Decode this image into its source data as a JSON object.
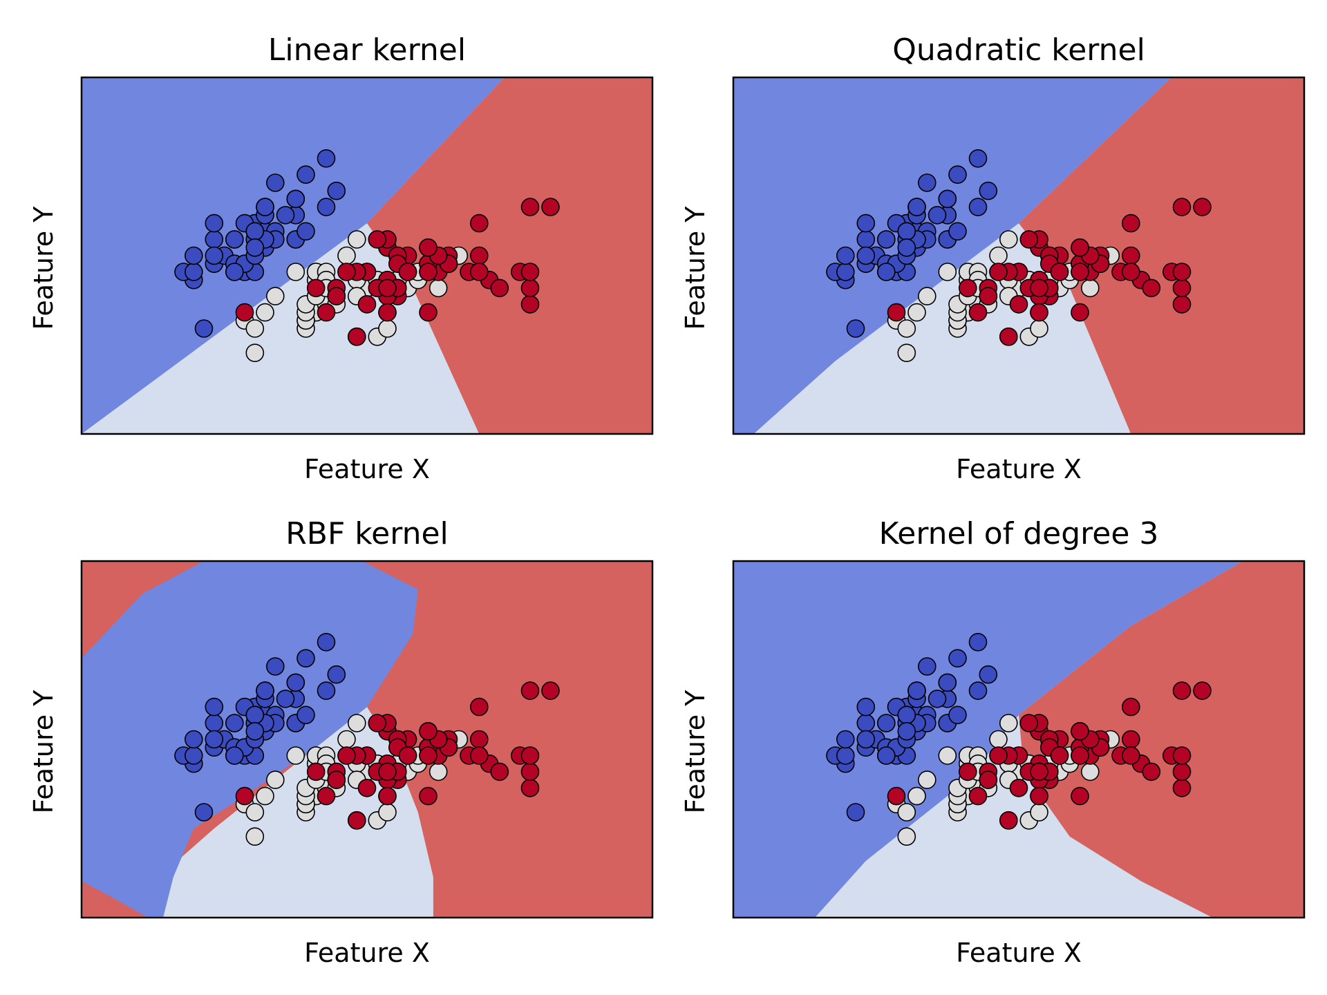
{
  "colors": {
    "class_0_region": "#7186DE",
    "class_1_region": "#D5DEEF",
    "class_2_region": "#D5625E",
    "class_0_point": "#3B4CC0",
    "class_1_point": "#DDDDDD",
    "class_2_point": "#B40426",
    "marker_edge": "#000000"
  },
  "chart_data": [
    {
      "type": "scatter",
      "title": "Linear kernel",
      "xlabel": "Feature X",
      "ylabel": "Feature Y",
      "xlim": [
        3.3,
        8.9
      ],
      "ylim": [
        1.0,
        5.4
      ],
      "ticks_visible": false,
      "grid": false,
      "decision_regions": {
        "type": "lines",
        "boundary_0": [
          [
            3.3,
            1.0
          ],
          [
            6.1,
            3.6
          ],
          [
            7.45,
            5.4
          ]
        ],
        "boundary_2": [
          [
            6.1,
            3.6
          ],
          [
            6.55,
            2.8
          ],
          [
            7.2,
            1.0
          ]
        ]
      }
    },
    {
      "type": "scatter",
      "title": "Quadratic kernel",
      "xlabel": "Feature X",
      "ylabel": "Feature Y",
      "xlim": [
        3.3,
        8.9
      ],
      "ylim": [
        1.0,
        5.4
      ],
      "ticks_visible": false,
      "grid": false,
      "decision_regions": {
        "type": "lines",
        "boundary_0": [
          [
            3.5,
            1.0
          ],
          [
            4.3,
            1.9
          ],
          [
            6.1,
            3.6
          ],
          [
            7.6,
            5.4
          ]
        ],
        "boundary_2": [
          [
            6.1,
            3.6
          ],
          [
            6.6,
            2.8
          ],
          [
            7.2,
            1.0
          ]
        ]
      }
    },
    {
      "type": "scatter",
      "title": "RBF kernel",
      "xlabel": "Feature X",
      "ylabel": "Feature Y",
      "xlim": [
        3.3,
        8.9
      ],
      "ylim": [
        1.0,
        5.4
      ],
      "ticks_visible": false,
      "grid": false,
      "decision_regions": {
        "type": "rbf",
        "boundary_0": [
          [
            3.3,
            4.2
          ],
          [
            3.9,
            5.0
          ],
          [
            4.5,
            5.4
          ],
          [
            6.05,
            5.4
          ],
          [
            6.6,
            5.05
          ],
          [
            6.55,
            4.5
          ],
          [
            6.1,
            3.6
          ],
          [
            5.6,
            3.1
          ],
          [
            4.9,
            2.5
          ],
          [
            4.4,
            2.1
          ],
          [
            4.2,
            1.5
          ],
          [
            4.1,
            1.0
          ],
          [
            3.95,
            1.0
          ],
          [
            3.6,
            1.25
          ],
          [
            3.3,
            1.45
          ]
        ],
        "boundary_2": [
          [
            6.05,
            3.6
          ],
          [
            6.35,
            3.1
          ],
          [
            6.6,
            2.3
          ],
          [
            6.75,
            1.5
          ],
          [
            6.75,
            1.0
          ]
        ]
      }
    },
    {
      "type": "scatter",
      "title": "Kernel of degree 3",
      "xlabel": "Feature X",
      "ylabel": "Feature Y",
      "xlim": [
        3.3,
        8.9
      ],
      "ylim": [
        1.0,
        5.4
      ],
      "ticks_visible": false,
      "grid": false,
      "decision_regions": {
        "type": "lines",
        "boundary_0": [
          [
            4.1,
            1.0
          ],
          [
            4.6,
            1.7
          ],
          [
            5.6,
            2.7
          ],
          [
            6.1,
            3.5
          ],
          [
            7.2,
            4.6
          ],
          [
            8.3,
            5.4
          ]
        ],
        "boundary_2": [
          [
            6.1,
            3.5
          ],
          [
            6.15,
            2.8
          ],
          [
            6.6,
            2.0
          ],
          [
            7.3,
            1.45
          ],
          [
            8.0,
            1.0
          ]
        ]
      }
    }
  ],
  "points": {
    "class_0": [
      [
        5.1,
        3.5
      ],
      [
        4.9,
        3.0
      ],
      [
        4.7,
        3.2
      ],
      [
        4.6,
        3.1
      ],
      [
        5.0,
        3.6
      ],
      [
        5.4,
        3.9
      ],
      [
        4.6,
        3.4
      ],
      [
        5.0,
        3.4
      ],
      [
        4.4,
        2.9
      ],
      [
        4.9,
        3.1
      ],
      [
        5.4,
        3.7
      ],
      [
        4.8,
        3.4
      ],
      [
        4.8,
        3.0
      ],
      [
        4.3,
        3.0
      ],
      [
        5.8,
        4.0
      ],
      [
        5.7,
        4.4
      ],
      [
        5.4,
        3.9
      ],
      [
        5.1,
        3.5
      ],
      [
        5.7,
        3.8
      ],
      [
        5.1,
        3.8
      ],
      [
        5.4,
        3.4
      ],
      [
        5.1,
        3.7
      ],
      [
        4.6,
        3.6
      ],
      [
        5.1,
        3.3
      ],
      [
        4.8,
        3.4
      ],
      [
        5.0,
        3.0
      ],
      [
        5.0,
        3.4
      ],
      [
        5.2,
        3.5
      ],
      [
        5.2,
        3.4
      ],
      [
        4.7,
        3.2
      ],
      [
        4.8,
        3.1
      ],
      [
        5.4,
        3.4
      ],
      [
        5.2,
        4.1
      ],
      [
        5.5,
        4.2
      ],
      [
        4.9,
        3.1
      ],
      [
        5.0,
        3.2
      ],
      [
        5.5,
        3.5
      ],
      [
        4.9,
        3.6
      ],
      [
        4.4,
        3.0
      ],
      [
        5.1,
        3.4
      ],
      [
        5.0,
        3.5
      ],
      [
        4.5,
        2.3
      ],
      [
        4.4,
        3.2
      ],
      [
        5.0,
        3.5
      ],
      [
        5.1,
        3.8
      ],
      [
        4.8,
        3.0
      ],
      [
        5.1,
        3.8
      ],
      [
        4.6,
        3.2
      ],
      [
        5.3,
        3.7
      ],
      [
        5.0,
        3.3
      ]
    ],
    "class_1": [
      [
        7.0,
        3.2
      ],
      [
        6.4,
        3.2
      ],
      [
        6.9,
        3.1
      ],
      [
        5.5,
        2.3
      ],
      [
        6.5,
        2.8
      ],
      [
        5.7,
        2.8
      ],
      [
        6.3,
        3.3
      ],
      [
        4.9,
        2.4
      ],
      [
        6.6,
        2.9
      ],
      [
        5.2,
        2.7
      ],
      [
        5.0,
        2.0
      ],
      [
        5.9,
        3.0
      ],
      [
        6.0,
        2.2
      ],
      [
        6.1,
        2.9
      ],
      [
        5.6,
        2.9
      ],
      [
        6.7,
        3.1
      ],
      [
        5.6,
        3.0
      ],
      [
        5.8,
        2.7
      ],
      [
        6.2,
        2.2
      ],
      [
        5.6,
        2.5
      ],
      [
        5.9,
        3.2
      ],
      [
        6.1,
        2.8
      ],
      [
        6.3,
        2.5
      ],
      [
        6.1,
        2.8
      ],
      [
        6.4,
        2.9
      ],
      [
        6.6,
        3.0
      ],
      [
        6.8,
        2.8
      ],
      [
        6.7,
        3.0
      ],
      [
        6.0,
        2.9
      ],
      [
        5.7,
        2.6
      ],
      [
        5.5,
        2.4
      ],
      [
        5.5,
        2.4
      ],
      [
        5.8,
        2.7
      ],
      [
        6.0,
        2.7
      ],
      [
        5.4,
        3.0
      ],
      [
        6.0,
        3.4
      ],
      [
        6.7,
        3.1
      ],
      [
        6.3,
        2.3
      ],
      [
        5.6,
        3.0
      ],
      [
        5.5,
        2.5
      ],
      [
        5.5,
        2.6
      ],
      [
        6.1,
        3.0
      ],
      [
        5.8,
        2.6
      ],
      [
        5.0,
        2.3
      ],
      [
        5.6,
        2.7
      ],
      [
        5.7,
        3.0
      ],
      [
        5.7,
        2.9
      ],
      [
        6.2,
        2.9
      ],
      [
        5.1,
        2.5
      ],
      [
        5.7,
        2.8
      ]
    ],
    "class_2": [
      [
        6.3,
        3.3
      ],
      [
        5.8,
        2.7
      ],
      [
        7.1,
        3.0
      ],
      [
        6.3,
        2.9
      ],
      [
        6.5,
        3.0
      ],
      [
        7.6,
        3.0
      ],
      [
        4.9,
        2.5
      ],
      [
        7.3,
        2.9
      ],
      [
        6.7,
        2.5
      ],
      [
        7.2,
        3.6
      ],
      [
        6.5,
        3.2
      ],
      [
        6.4,
        2.7
      ],
      [
        6.8,
        3.0
      ],
      [
        5.7,
        2.5
      ],
      [
        5.8,
        2.8
      ],
      [
        6.4,
        3.2
      ],
      [
        6.5,
        3.0
      ],
      [
        7.7,
        3.8
      ],
      [
        7.7,
        2.6
      ],
      [
        6.0,
        2.2
      ],
      [
        6.9,
        3.2
      ],
      [
        5.6,
        2.8
      ],
      [
        7.7,
        2.8
      ],
      [
        6.3,
        2.7
      ],
      [
        6.7,
        3.3
      ],
      [
        7.2,
        3.2
      ],
      [
        6.2,
        2.8
      ],
      [
        6.1,
        3.0
      ],
      [
        6.4,
        2.8
      ],
      [
        7.2,
        3.0
      ],
      [
        7.4,
        2.8
      ],
      [
        7.9,
        3.8
      ],
      [
        6.4,
        2.8
      ],
      [
        6.3,
        2.8
      ],
      [
        6.1,
        2.6
      ],
      [
        7.7,
        3.0
      ],
      [
        6.3,
        3.4
      ],
      [
        6.4,
        3.1
      ],
      [
        6.0,
        3.0
      ],
      [
        6.9,
        3.1
      ],
      [
        6.7,
        3.1
      ],
      [
        6.9,
        3.1
      ],
      [
        5.8,
        2.7
      ],
      [
        6.8,
        3.2
      ],
      [
        6.7,
        3.3
      ],
      [
        6.7,
        3.0
      ],
      [
        6.3,
        2.5
      ],
      [
        6.5,
        3.0
      ],
      [
        6.2,
        3.4
      ],
      [
        5.9,
        3.0
      ]
    ]
  }
}
